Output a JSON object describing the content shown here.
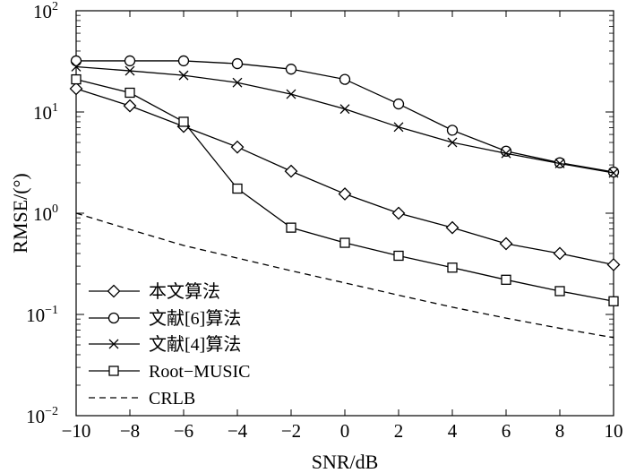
{
  "chart_data": {
    "type": "line",
    "title": "",
    "xlabel": "SNR/dB",
    "ylabel": "RMSE/(°)",
    "xlim": [
      -10,
      10
    ],
    "ylim": [
      0.01,
      100
    ],
    "yscale": "log",
    "grid": false,
    "legend_position": "bottom-left",
    "x": [
      -10,
      -8,
      -6,
      -4,
      -2,
      0,
      2,
      4,
      6,
      8,
      10
    ],
    "x_ticks": [
      "−10",
      "−8",
      "−6",
      "−4",
      "−2",
      "0",
      "2",
      "4",
      "6",
      "8",
      "10"
    ],
    "y_tick_exponents": [
      "−2",
      "−1",
      "0",
      "1",
      "2"
    ],
    "y_tick_base": "10",
    "series": [
      {
        "name": "本文算法",
        "marker": "diamond",
        "line": "solid",
        "values": [
          17,
          11.5,
          7.2,
          4.5,
          2.6,
          1.55,
          1.0,
          0.72,
          0.5,
          0.4,
          0.31
        ]
      },
      {
        "name": "文献[6]算法",
        "marker": "circle",
        "line": "solid",
        "values": [
          32,
          32,
          32,
          30,
          26.5,
          21,
          12,
          6.6,
          4.1,
          3.15,
          2.55
        ]
      },
      {
        "name": "文献[4]算法",
        "marker": "x",
        "line": "solid",
        "values": [
          28,
          25.5,
          23,
          19.5,
          15,
          10.7,
          7.1,
          5.0,
          3.9,
          3.1,
          2.5
        ]
      },
      {
        "name": "Root−MUSIC",
        "marker": "square",
        "line": "solid",
        "values": [
          21,
          15.5,
          8.0,
          1.75,
          0.72,
          0.51,
          0.38,
          0.29,
          0.22,
          0.17,
          0.135
        ]
      },
      {
        "name": "CRLB",
        "marker": "none",
        "line": "dashed",
        "values": [
          1.0,
          0.69,
          0.48,
          0.36,
          0.27,
          0.205,
          0.155,
          0.118,
          0.092,
          0.073,
          0.059
        ]
      }
    ]
  }
}
